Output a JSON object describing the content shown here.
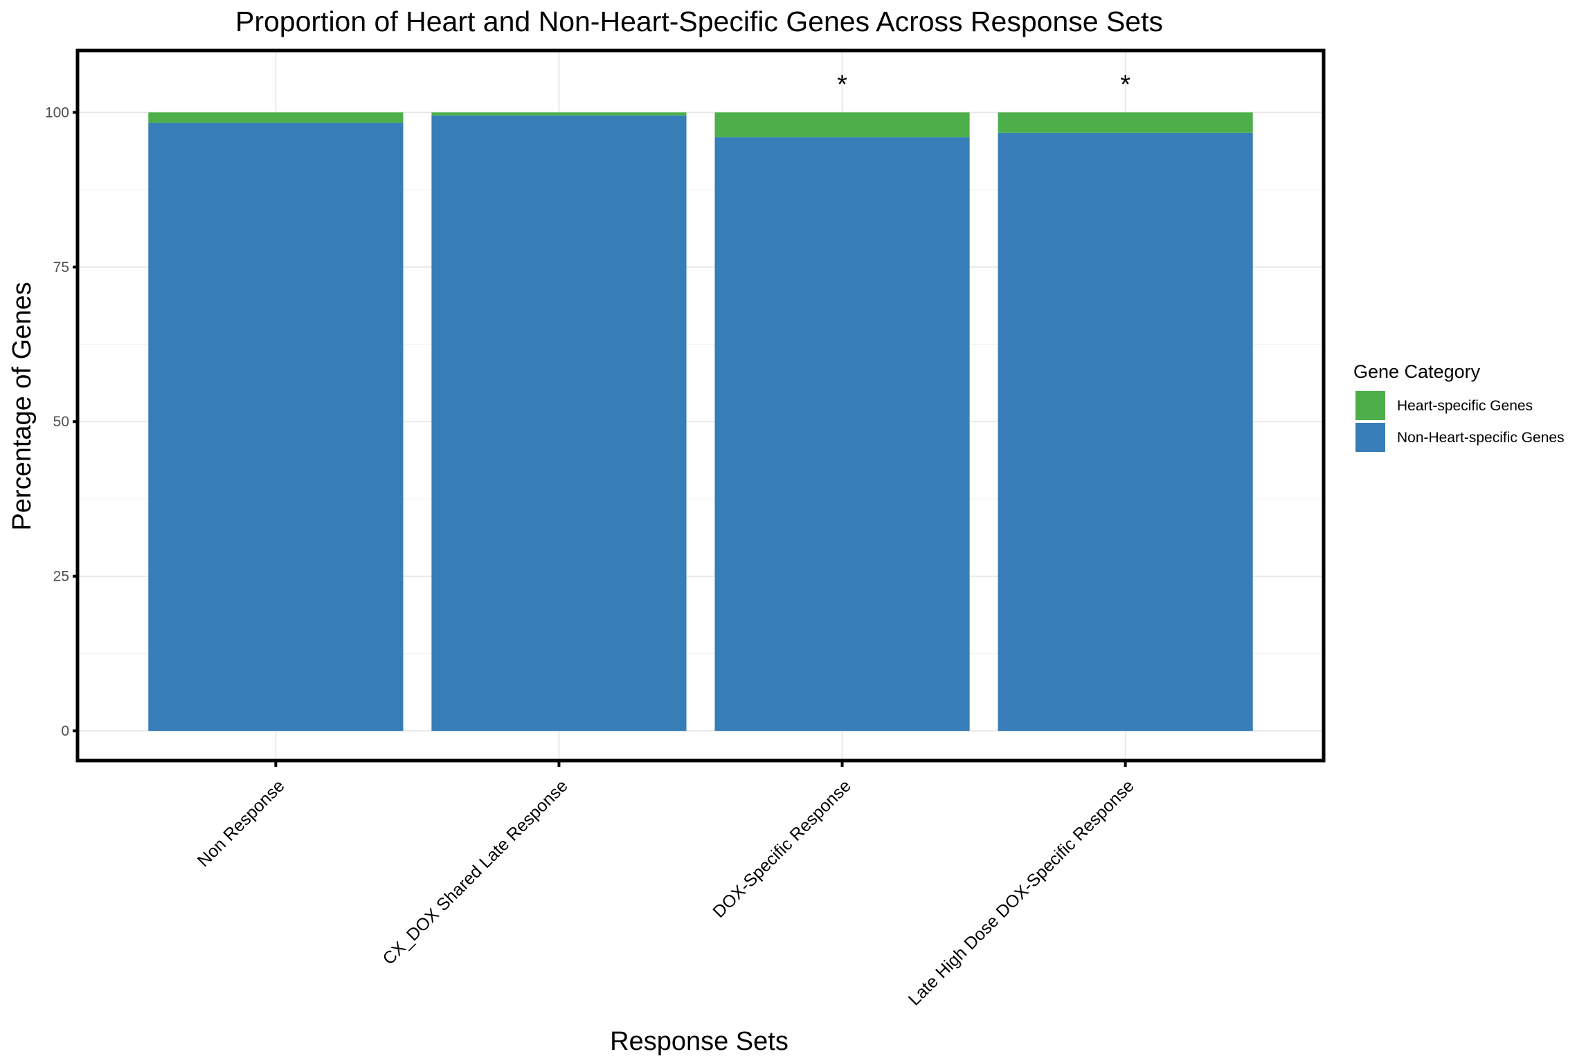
{
  "chart_data": {
    "type": "bar",
    "stacked": true,
    "title": "Proportion of Heart and Non-Heart-Specific Genes Across Response Sets",
    "xlabel": "Response Sets",
    "ylabel": "Percentage of Genes",
    "ylim": [
      -4.8,
      110
    ],
    "y_ticks": [
      "0",
      "25",
      "50",
      "75",
      "100"
    ],
    "grid": true,
    "legend_position": "right",
    "legend_title": "Gene Category",
    "categories": [
      "Non Response",
      "CX_DOX Shared Late Response",
      "DOX-Specific Response",
      "Late High Dose DOX-Specific Response"
    ],
    "series": [
      {
        "name": "Non-Heart-specific Genes",
        "color": "#377EB8",
        "values": [
          98.3,
          99.5,
          96.0,
          96.7
        ]
      },
      {
        "name": "Heart-specific Genes",
        "color": "#4DAF4A",
        "values": [
          1.7,
          0.5,
          4.0,
          3.3
        ]
      }
    ],
    "annotations": [
      "",
      "",
      "*",
      "*"
    ]
  }
}
